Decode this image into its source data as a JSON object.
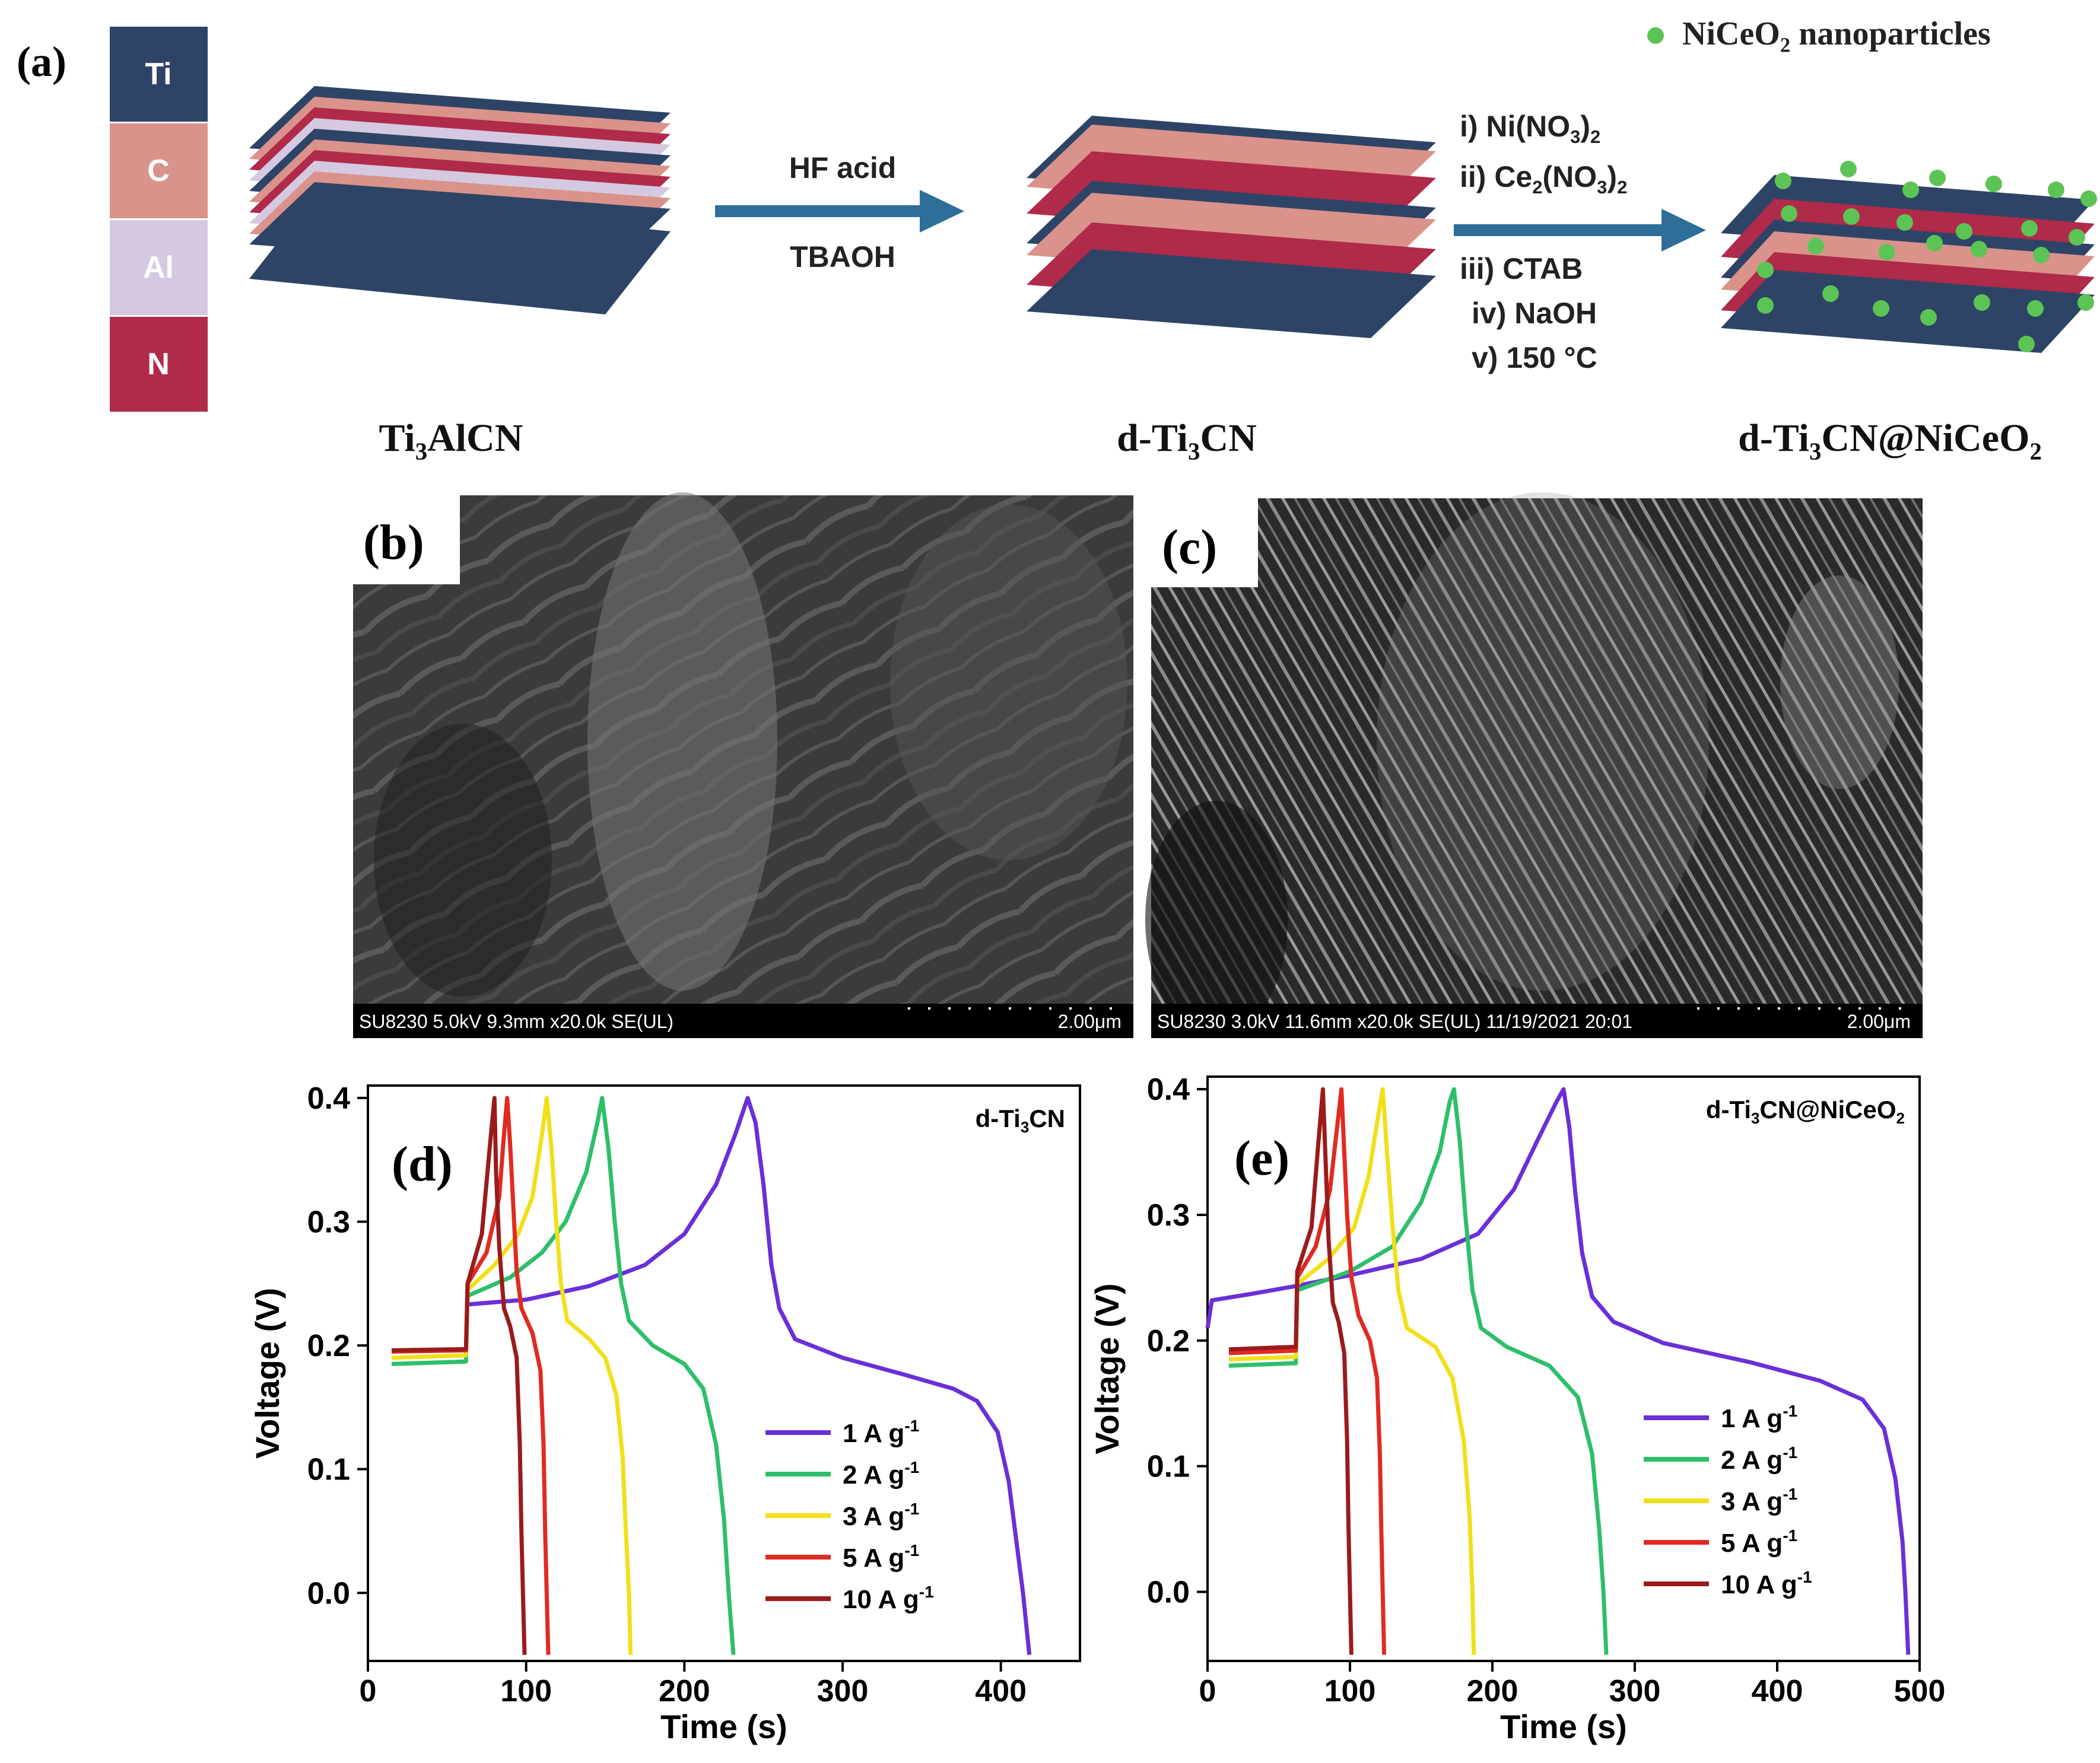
{
  "panels": {
    "a": "(a)",
    "b": "(b)",
    "c": "(c)",
    "d": "(d)",
    "e": "(e)"
  },
  "scheme": {
    "elements": [
      "Ti",
      "C",
      "Al",
      "N"
    ],
    "element_colors": [
      "#2e4466",
      "#d9938a",
      "#d4c9e1",
      "#b02a4a"
    ],
    "legend": {
      "pre": "NiCeO",
      "sub": "2",
      "post": " nanoparticles",
      "color": "#5cc454"
    },
    "step1": {
      "top": "HF acid",
      "bottom": "TBAOH"
    },
    "step2": [
      {
        "pre": "i) Ni(NO",
        "sub": "3",
        "post": ")",
        "sub2": "2"
      },
      {
        "pre": "ii) Ce",
        "sub": "2",
        "post": "(NO",
        "sub2": "3",
        "post2": ")",
        "sub3": "2"
      },
      {
        "pre": "iii) CTAB"
      },
      {
        "pre": "iv) NaOH"
      },
      {
        "pre": "v) 150 °C"
      }
    ],
    "names": [
      {
        "pre": "Ti",
        "sub": "3",
        "post": "AlCN"
      },
      {
        "pre": "d-Ti",
        "sub": "3",
        "post": "CN"
      },
      {
        "pre": "d-Ti",
        "sub": "3",
        "post": "CN@NiCeO",
        "sub2": "2"
      }
    ]
  },
  "sem": {
    "b": {
      "info": "SU8230 5.0kV 9.3mm x20.0k SE(UL)",
      "scale": "2.00μm"
    },
    "c": {
      "info": "SU8230 3.0kV 11.6mm x20.0k SE(UL) 11/19/2021 20:01",
      "scale": "2.00μm"
    }
  },
  "chart_data": [
    {
      "type": "line",
      "panel": "d",
      "label": {
        "pre": "d-Ti",
        "sub": "3",
        "post": "CN"
      },
      "xlabel": "Time (s)",
      "ylabel": "Voltage (V)",
      "xlim": [
        0,
        450
      ],
      "ylim": [
        -0.055,
        0.41
      ],
      "xticks": [
        0,
        100,
        200,
        300,
        400
      ],
      "yticks": [
        0.0,
        0.1,
        0.2,
        0.3,
        0.4
      ],
      "legend_position": "center-right",
      "series": [
        {
          "name": "1 A g-1",
          "color": "#6a2fd8",
          "points": [
            [
              62,
              0.233
            ],
            [
              100,
              0.237
            ],
            [
              140,
              0.248
            ],
            [
              175,
              0.265
            ],
            [
              200,
              0.29
            ],
            [
              220,
              0.33
            ],
            [
              232,
              0.37
            ],
            [
              240,
              0.4
            ],
            [
              245,
              0.38
            ],
            [
              250,
              0.33
            ],
            [
              255,
              0.265
            ],
            [
              260,
              0.23
            ],
            [
              270,
              0.205
            ],
            [
              300,
              0.19
            ],
            [
              340,
              0.176
            ],
            [
              370,
              0.165
            ],
            [
              385,
              0.155
            ],
            [
              398,
              0.13
            ],
            [
              405,
              0.09
            ],
            [
              410,
              0.04
            ],
            [
              414,
              0.0
            ],
            [
              418,
              -0.05
            ]
          ]
        },
        {
          "name": "2 A g-1",
          "color": "#2dbf6a",
          "points": [
            [
              15,
              0.185
            ],
            [
              62,
              0.187
            ],
            [
              63,
              0.24
            ],
            [
              90,
              0.255
            ],
            [
              110,
              0.275
            ],
            [
              125,
              0.3
            ],
            [
              138,
              0.34
            ],
            [
              145,
              0.38
            ],
            [
              148,
              0.4
            ],
            [
              152,
              0.36
            ],
            [
              156,
              0.3
            ],
            [
              160,
              0.25
            ],
            [
              165,
              0.22
            ],
            [
              180,
              0.2
            ],
            [
              200,
              0.185
            ],
            [
              212,
              0.165
            ],
            [
              220,
              0.12
            ],
            [
              225,
              0.06
            ],
            [
              228,
              0.0
            ],
            [
              231,
              -0.05
            ]
          ]
        },
        {
          "name": "3 A g-1",
          "color": "#f0e01a",
          "points": [
            [
              15,
              0.19
            ],
            [
              62,
              0.192
            ],
            [
              63,
              0.245
            ],
            [
              80,
              0.265
            ],
            [
              95,
              0.29
            ],
            [
              104,
              0.32
            ],
            [
              110,
              0.37
            ],
            [
              113,
              0.4
            ],
            [
              116,
              0.36
            ],
            [
              119,
              0.3
            ],
            [
              122,
              0.25
            ],
            [
              126,
              0.22
            ],
            [
              140,
              0.205
            ],
            [
              150,
              0.19
            ],
            [
              157,
              0.16
            ],
            [
              161,
              0.11
            ],
            [
              163,
              0.05
            ],
            [
              165,
              0.0
            ],
            [
              166,
              -0.05
            ]
          ]
        },
        {
          "name": "5 A g-1",
          "color": "#e02b22",
          "points": [
            [
              15,
              0.195
            ],
            [
              62,
              0.196
            ],
            [
              63,
              0.25
            ],
            [
              75,
              0.275
            ],
            [
              83,
              0.32
            ],
            [
              86,
              0.37
            ],
            [
              88,
              0.4
            ],
            [
              90,
              0.36
            ],
            [
              92,
              0.31
            ],
            [
              94,
              0.26
            ],
            [
              97,
              0.23
            ],
            [
              104,
              0.21
            ],
            [
              109,
              0.18
            ],
            [
              111,
              0.12
            ],
            [
              112,
              0.05
            ],
            [
              113,
              0.0
            ],
            [
              114,
              -0.05
            ]
          ]
        },
        {
          "name": "10 A g-1",
          "color": "#9a1b1b",
          "points": [
            [
              15,
              0.196
            ],
            [
              62,
              0.197
            ],
            [
              63,
              0.25
            ],
            [
              72,
              0.29
            ],
            [
              77,
              0.36
            ],
            [
              80,
              0.4
            ],
            [
              81,
              0.34
            ],
            [
              83,
              0.28
            ],
            [
              86,
              0.23
            ],
            [
              90,
              0.215
            ],
            [
              94,
              0.19
            ],
            [
              96,
              0.12
            ],
            [
              97,
              0.05
            ],
            [
              98,
              0.0
            ],
            [
              99,
              -0.05
            ]
          ]
        }
      ]
    },
    {
      "type": "line",
      "panel": "e",
      "label": {
        "pre": "d-Ti",
        "sub": "3",
        "post": "CN@NiCeO",
        "sub2": "2"
      },
      "xlabel": "Time (s)",
      "ylabel": "Voltage (V)",
      "xlim": [
        0,
        500
      ],
      "ylim": [
        -0.055,
        0.41
      ],
      "xticks": [
        0,
        100,
        200,
        300,
        400,
        500
      ],
      "yticks": [
        0.0,
        0.1,
        0.2,
        0.3,
        0.4
      ],
      "legend_position": "center-right",
      "series": [
        {
          "name": "1 A g-1",
          "color": "#6a2fd8",
          "points": [
            [
              0,
              0.21
            ],
            [
              3,
              0.232
            ],
            [
              30,
              0.237
            ],
            [
              60,
              0.243
            ],
            [
              100,
              0.252
            ],
            [
              150,
              0.265
            ],
            [
              190,
              0.285
            ],
            [
              215,
              0.32
            ],
            [
              232,
              0.36
            ],
            [
              245,
              0.39
            ],
            [
              250,
              0.4
            ],
            [
              254,
              0.37
            ],
            [
              258,
              0.32
            ],
            [
              263,
              0.27
            ],
            [
              270,
              0.235
            ],
            [
              285,
              0.215
            ],
            [
              320,
              0.198
            ],
            [
              380,
              0.183
            ],
            [
              430,
              0.168
            ],
            [
              460,
              0.153
            ],
            [
              475,
              0.13
            ],
            [
              483,
              0.09
            ],
            [
              488,
              0.04
            ],
            [
              490,
              0.0
            ],
            [
              492,
              -0.05
            ]
          ]
        },
        {
          "name": "2 A g-1",
          "color": "#2dbf6a",
          "points": [
            [
              15,
              0.18
            ],
            [
              62,
              0.182
            ],
            [
              63,
              0.24
            ],
            [
              100,
              0.255
            ],
            [
              130,
              0.275
            ],
            [
              150,
              0.31
            ],
            [
              163,
              0.35
            ],
            [
              170,
              0.39
            ],
            [
              173,
              0.4
            ],
            [
              177,
              0.36
            ],
            [
              181,
              0.3
            ],
            [
              186,
              0.24
            ],
            [
              192,
              0.21
            ],
            [
              210,
              0.195
            ],
            [
              240,
              0.18
            ],
            [
              260,
              0.155
            ],
            [
              270,
              0.11
            ],
            [
              275,
              0.05
            ],
            [
              278,
              0.0
            ],
            [
              280,
              -0.05
            ]
          ]
        },
        {
          "name": "3 A g-1",
          "color": "#f0e01a",
          "points": [
            [
              15,
              0.185
            ],
            [
              62,
              0.187
            ],
            [
              63,
              0.245
            ],
            [
              85,
              0.265
            ],
            [
              103,
              0.29
            ],
            [
              113,
              0.33
            ],
            [
              120,
              0.38
            ],
            [
              123,
              0.4
            ],
            [
              126,
              0.35
            ],
            [
              130,
              0.29
            ],
            [
              134,
              0.24
            ],
            [
              140,
              0.21
            ],
            [
              160,
              0.195
            ],
            [
              172,
              0.17
            ],
            [
              180,
              0.12
            ],
            [
              184,
              0.06
            ],
            [
              186,
              0.0
            ],
            [
              187,
              -0.05
            ]
          ]
        },
        {
          "name": "5 A g-1",
          "color": "#e02b22",
          "points": [
            [
              15,
              0.19
            ],
            [
              62,
              0.192
            ],
            [
              63,
              0.25
            ],
            [
              76,
              0.275
            ],
            [
              86,
              0.32
            ],
            [
              91,
              0.37
            ],
            [
              94,
              0.4
            ],
            [
              96,
              0.35
            ],
            [
              98,
              0.3
            ],
            [
              101,
              0.25
            ],
            [
              106,
              0.22
            ],
            [
              114,
              0.2
            ],
            [
              119,
              0.17
            ],
            [
              121,
              0.11
            ],
            [
              122,
              0.05
            ],
            [
              123,
              0.0
            ],
            [
              124,
              -0.05
            ]
          ]
        },
        {
          "name": "10 A g-1",
          "color": "#9a1b1b",
          "points": [
            [
              15,
              0.193
            ],
            [
              62,
              0.195
            ],
            [
              63,
              0.255
            ],
            [
              73,
              0.29
            ],
            [
              78,
              0.36
            ],
            [
              81,
              0.4
            ],
            [
              83,
              0.34
            ],
            [
              85,
              0.28
            ],
            [
              88,
              0.23
            ],
            [
              92,
              0.215
            ],
            [
              96,
              0.19
            ],
            [
              98,
              0.12
            ],
            [
              99,
              0.05
            ],
            [
              100,
              0.0
            ],
            [
              101,
              -0.05
            ]
          ]
        }
      ]
    }
  ]
}
